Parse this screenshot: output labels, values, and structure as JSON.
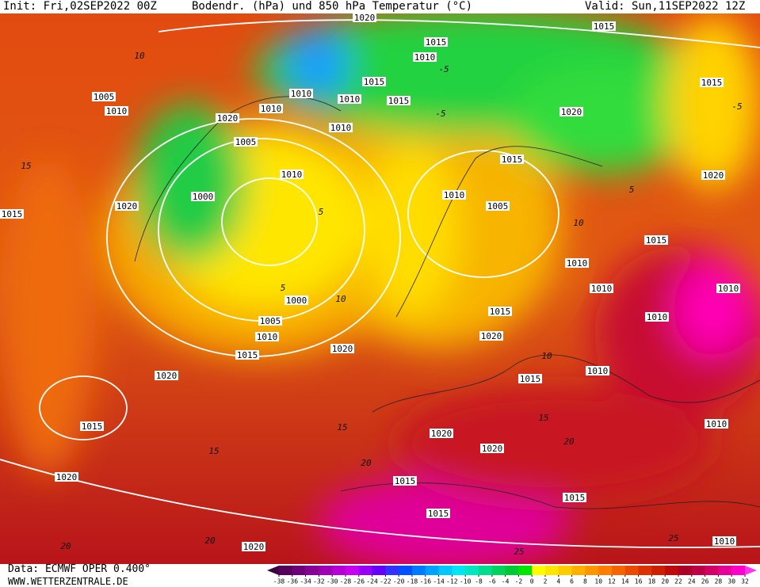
{
  "header": {
    "init": "Init: Fri,02SEP2022 00Z",
    "title": "Bodendr. (hPa) und 850 hPa Temperatur (°C)",
    "valid": "Valid: Sun,11SEP2022 12Z"
  },
  "footer": {
    "data": "Data: ECMWF OPER 0.400°",
    "site": "WWW.WETTERZENTRALE.DE"
  },
  "colorbar": {
    "ticks": [
      -38,
      -36,
      -34,
      -32,
      -30,
      -28,
      -26,
      -24,
      -22,
      -20,
      -18,
      -16,
      -14,
      -12,
      -10,
      -8,
      -6,
      -4,
      -2,
      0,
      2,
      4,
      6,
      8,
      10,
      12,
      14,
      16,
      18,
      20,
      22,
      24,
      26,
      28,
      30,
      32
    ],
    "colors": [
      "#3c0040",
      "#55005a",
      "#6e0078",
      "#870096",
      "#a000b4",
      "#b400d2",
      "#c800f0",
      "#9600f5",
      "#6400fa",
      "#3232ff",
      "#0050ff",
      "#0078ff",
      "#00a0ff",
      "#00c8ff",
      "#00e6f0",
      "#00e6be",
      "#00dc8c",
      "#00d25a",
      "#00c832",
      "#00e600",
      "#ffff00",
      "#ffe600",
      "#ffcc00",
      "#ffb000",
      "#ff9600",
      "#ff7d00",
      "#f56400",
      "#eb4b00",
      "#dc3200",
      "#cd1e00",
      "#be0a0a",
      "#aa0028",
      "#be0046",
      "#d20064",
      "#e60096",
      "#ff00c8",
      "#ff32f0"
    ]
  },
  "isobar_labels": [
    "1020",
    "1015",
    "1015",
    "1010",
    "1015",
    "1010",
    "1010",
    "1015",
    "1015",
    "1005",
    "1010",
    "1010",
    "1020",
    "1020",
    "1010",
    "1005",
    "1010",
    "1015",
    "1020",
    "1000",
    "1020",
    "1015",
    "1010",
    "1005",
    "1015",
    "1010",
    "1010",
    "1010",
    "1000",
    "1005",
    "1015",
    "1010",
    "1010",
    "1020",
    "1015",
    "1020",
    "1010",
    "1015",
    "1020",
    "1015",
    "1010",
    "1020",
    "1020",
    "1020",
    "1015",
    "1015",
    "1015",
    "1010",
    "1020"
  ],
  "temperature_labels": [
    "10",
    "-5",
    "-5",
    "15",
    "5",
    "10",
    "15",
    "15",
    "20",
    "20",
    "20",
    "25",
    "10",
    "5",
    "10",
    "15",
    "20",
    "25",
    "5",
    "-5"
  ]
}
